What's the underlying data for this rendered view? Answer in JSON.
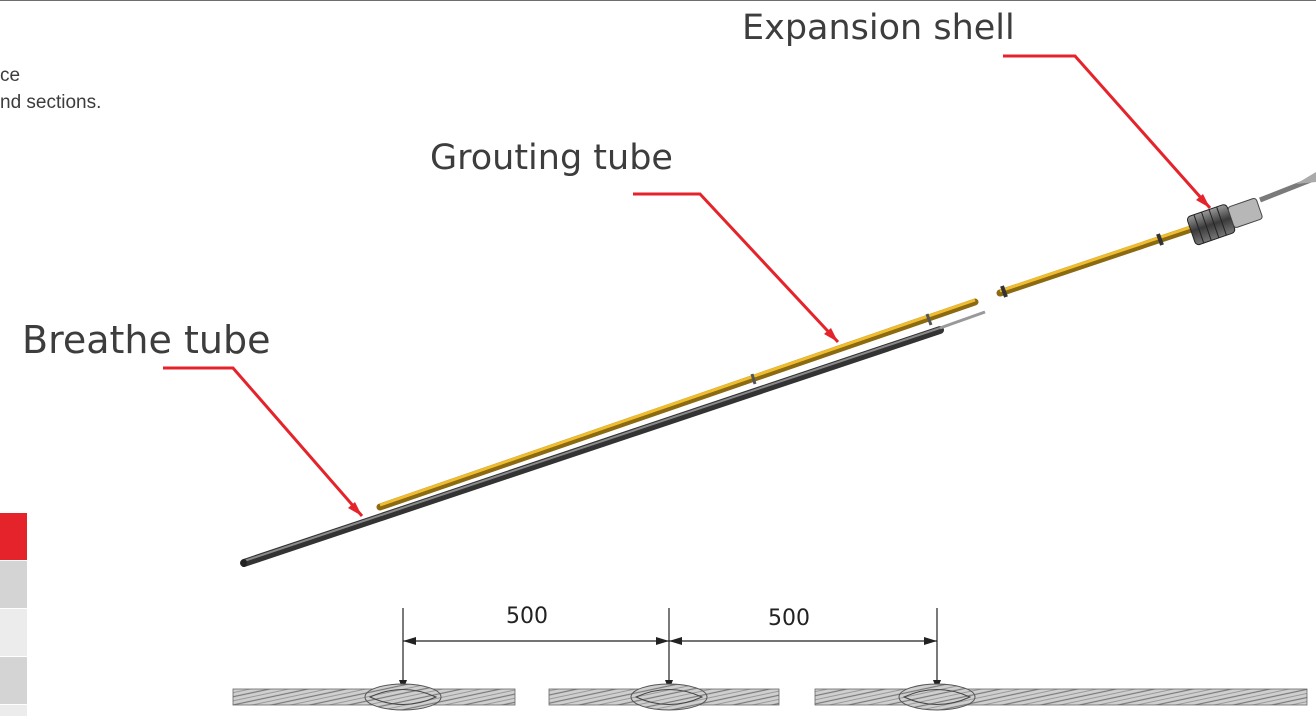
{
  "description": {
    "line1": "ce",
    "line2": "nd sections."
  },
  "callouts": {
    "expansion_shell": "Expansion shell",
    "grouting_tube": "Grouting tube",
    "breathe_tube": "Breathe tube"
  },
  "dimensions": {
    "spacing_1": "500",
    "spacing_2": "500"
  },
  "colors": {
    "accent_red": "#e5232b",
    "tube_yellow": "#d9a31e",
    "cable_gray": "#5a5a5a",
    "table_gray": "#d4d4d4"
  }
}
